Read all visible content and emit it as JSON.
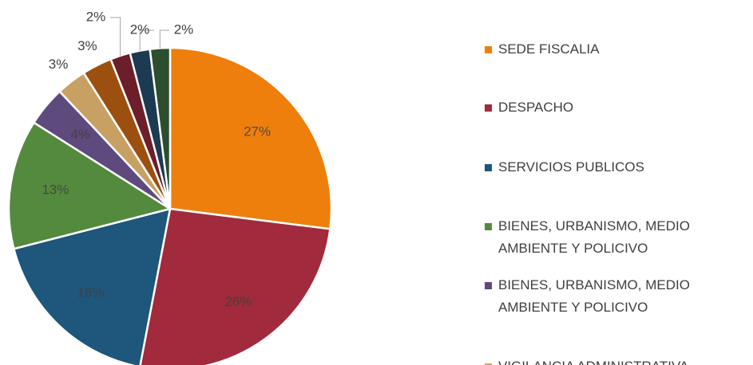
{
  "chart_data": {
    "type": "pie",
    "categories": [
      "SEDE FISCALIA",
      "DESPACHO",
      "SERVICIOS PUBLICOS",
      "BIENES, URBANISMO, MEDIO AMBIENTE Y POLICIVO",
      "BIENES, URBANISMO, MEDIO AMBIENTE Y POLICIVO",
      "VIGILANCIA ADMINISTRATIVA",
      null,
      null,
      null,
      null
    ],
    "values": [
      27,
      26,
      18,
      13,
      4,
      3,
      3,
      2,
      2,
      2
    ],
    "value_labels": [
      "27%",
      "26%",
      "18%",
      "13%",
      "4%",
      "3%",
      "3%",
      "2%",
      "2%",
      "2%"
    ],
    "colors": [
      "#ee7f0c",
      "#a12a3c",
      "#1e567c",
      "#548a3e",
      "#5e4a7c",
      "#c9a063",
      "#9b500f",
      "#6c1e2a",
      "#1c3a52",
      "#2c4e2e"
    ]
  }
}
